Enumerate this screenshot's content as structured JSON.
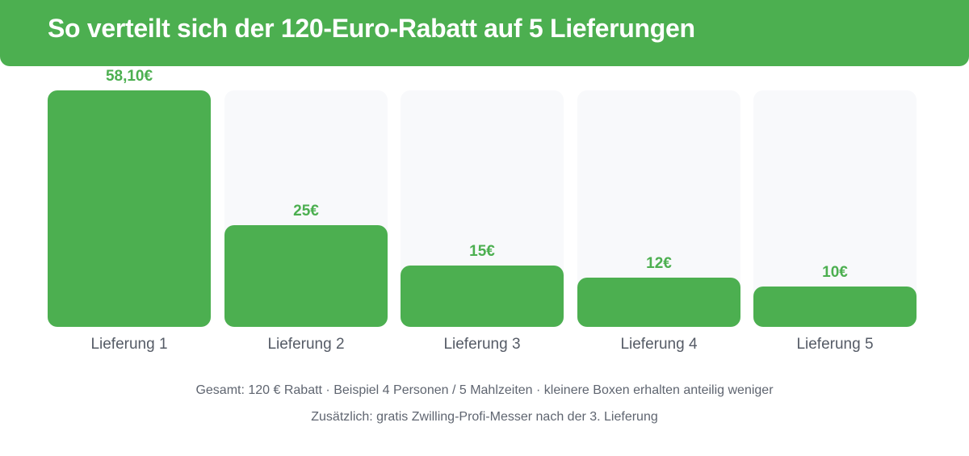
{
  "header": {
    "title": "So verteilt sich der 120-Euro-Rabatt auf 5 Lieferungen"
  },
  "chart_data": {
    "type": "bar",
    "title": "So verteilt sich der 120-Euro-Rabatt auf 5 Lieferungen",
    "categories": [
      "Lieferung 1",
      "Lieferung 2",
      "Lieferung 3",
      "Lieferung 4",
      "Lieferung 5"
    ],
    "values": [
      58.1,
      25,
      15,
      12,
      10
    ],
    "value_labels": [
      "58,10€",
      "25€",
      "15€",
      "12€",
      "10€"
    ],
    "xlabel": "",
    "ylabel": "",
    "ylim": [
      0,
      58.1
    ],
    "grid": false,
    "colors": {
      "bar": "#4caf50",
      "track": "#f8f9fb",
      "header": "#4caf50"
    }
  },
  "footer": {
    "line1": "Gesamt: 120 € Rabatt · Beispiel 4 Personen / 5 Mahlzeiten · kleinere Boxen erhalten anteilig weniger",
    "line2": "Zusätzlich: gratis Zwilling-Profi-Messer nach der 3. Lieferung"
  }
}
